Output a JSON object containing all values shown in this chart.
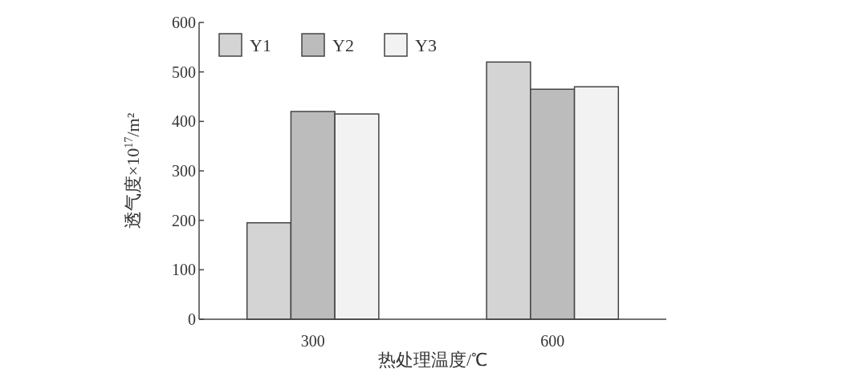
{
  "chart_data": {
    "type": "bar",
    "xlabel": "热处理温度/℃",
    "ylabel": "透气度×10$^{17}$/m²",
    "categories": [
      "300",
      "600"
    ],
    "series": [
      {
        "name": "Y1",
        "color": "#d4d4d4",
        "values": [
          195,
          520
        ]
      },
      {
        "name": "Y2",
        "color": "#bcbcbc",
        "values": [
          420,
          465
        ]
      },
      {
        "name": "Y3",
        "color": "#f2f2f2",
        "values": [
          415,
          470
        ]
      }
    ],
    "ylim": [
      0,
      600
    ],
    "yticks": [
      0,
      100,
      200,
      300,
      400,
      500,
      600
    ],
    "grid": false,
    "legend": "top left"
  }
}
